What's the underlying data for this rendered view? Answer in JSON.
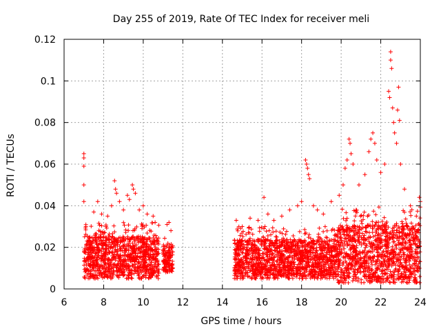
{
  "chart_data": {
    "type": "scatter",
    "title": "Day 255 of 2019, Rate Of TEC Index for receiver meli",
    "xlabel": "GPS time / hours",
    "ylabel": "ROTI / TECUs",
    "xlim": [
      6,
      24
    ],
    "ylim": [
      0,
      0.12
    ],
    "x_ticks": [
      6,
      8,
      10,
      12,
      14,
      16,
      18,
      20,
      22,
      24
    ],
    "x_tick_labels": [
      "6",
      "8",
      "10",
      "12",
      "14",
      "16",
      "18",
      "20",
      "22",
      "24"
    ],
    "y_ticks": [
      0,
      0.02,
      0.04,
      0.06,
      0.08,
      0.1,
      0.12
    ],
    "y_tick_labels": [
      "0",
      "0.02",
      "0.04",
      "0.06",
      "0.08",
      "0.1",
      "0.12"
    ],
    "grid": true,
    "marker": "+",
    "color": "#ff0000",
    "series": [
      {
        "name": "ROTI",
        "points": [
          [
            7.0,
            0.065
          ],
          [
            7.0,
            0.063
          ],
          [
            7.0,
            0.059
          ],
          [
            7.0,
            0.05
          ],
          [
            7.0,
            0.042
          ],
          [
            7.1,
            0.03
          ],
          [
            7.3,
            0.025
          ],
          [
            7.5,
            0.037
          ],
          [
            7.7,
            0.042
          ],
          [
            7.9,
            0.036
          ],
          [
            8.2,
            0.035
          ],
          [
            8.4,
            0.04
          ],
          [
            8.55,
            0.052
          ],
          [
            8.6,
            0.048
          ],
          [
            8.65,
            0.046
          ],
          [
            8.8,
            0.042
          ],
          [
            9.0,
            0.038
          ],
          [
            9.2,
            0.045
          ],
          [
            9.3,
            0.043
          ],
          [
            9.45,
            0.05
          ],
          [
            9.5,
            0.048
          ],
          [
            9.6,
            0.046
          ],
          [
            9.8,
            0.038
          ],
          [
            10.0,
            0.04
          ],
          [
            10.2,
            0.036
          ],
          [
            10.5,
            0.035
          ],
          [
            10.6,
            0.032
          ],
          [
            11.2,
            0.031
          ],
          [
            11.3,
            0.032
          ],
          [
            11.4,
            0.028
          ],
          [
            14.7,
            0.033
          ],
          [
            15.0,
            0.03
          ],
          [
            15.4,
            0.034
          ],
          [
            15.8,
            0.033
          ],
          [
            16.1,
            0.044
          ],
          [
            16.3,
            0.036
          ],
          [
            16.6,
            0.033
          ],
          [
            17.0,
            0.035
          ],
          [
            17.4,
            0.038
          ],
          [
            17.8,
            0.04
          ],
          [
            18.0,
            0.042
          ],
          [
            18.2,
            0.062
          ],
          [
            18.25,
            0.06
          ],
          [
            18.3,
            0.058
          ],
          [
            18.35,
            0.055
          ],
          [
            18.4,
            0.053
          ],
          [
            18.6,
            0.04
          ],
          [
            18.8,
            0.038
          ],
          [
            19.1,
            0.036
          ],
          [
            19.5,
            0.042
          ],
          [
            19.9,
            0.045
          ],
          [
            20.1,
            0.05
          ],
          [
            20.2,
            0.058
          ],
          [
            20.3,
            0.062
          ],
          [
            20.4,
            0.072
          ],
          [
            20.45,
            0.07
          ],
          [
            20.5,
            0.065
          ],
          [
            20.6,
            0.06
          ],
          [
            20.9,
            0.05
          ],
          [
            21.2,
            0.055
          ],
          [
            21.4,
            0.066
          ],
          [
            21.5,
            0.072
          ],
          [
            21.6,
            0.075
          ],
          [
            21.7,
            0.07
          ],
          [
            21.8,
            0.062
          ],
          [
            22.0,
            0.056
          ],
          [
            22.2,
            0.06
          ],
          [
            22.4,
            0.095
          ],
          [
            22.45,
            0.092
          ],
          [
            22.5,
            0.114
          ],
          [
            22.5,
            0.11
          ],
          [
            22.55,
            0.106
          ],
          [
            22.6,
            0.087
          ],
          [
            22.65,
            0.08
          ],
          [
            22.7,
            0.075
          ],
          [
            22.8,
            0.07
          ],
          [
            22.85,
            0.086
          ],
          [
            22.9,
            0.097
          ],
          [
            22.95,
            0.081
          ],
          [
            23.0,
            0.06
          ],
          [
            23.2,
            0.048
          ],
          [
            23.5,
            0.04
          ],
          [
            23.8,
            0.035
          ],
          [
            23.95,
            0.044
          ],
          [
            24.0,
            0.042
          ]
        ],
        "bulk_bands": [
          {
            "x_range": [
              7.0,
              10.8
            ],
            "y_range": [
              0.005,
              0.032
            ]
          },
          {
            "x_range": [
              11.0,
              11.5
            ],
            "y_range": [
              0.008,
              0.025
            ]
          },
          {
            "x_range": [
              14.6,
              19.8
            ],
            "y_range": [
              0.005,
              0.03
            ]
          },
          {
            "x_range": [
              19.8,
              24.0
            ],
            "y_range": [
              0.003,
              0.04
            ]
          }
        ]
      }
    ]
  }
}
